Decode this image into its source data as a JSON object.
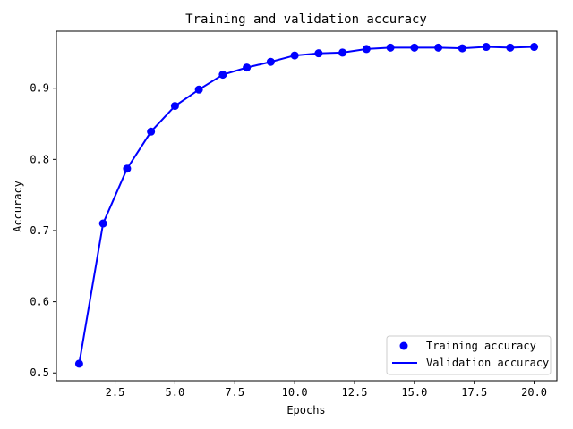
{
  "chart_data": {
    "type": "line",
    "title": "Training and validation accuracy",
    "xlabel": "Epochs",
    "ylabel": "Accuracy",
    "xlim": [
      0.05,
      20.95
    ],
    "ylim": [
      0.489,
      0.98
    ],
    "xticks": [
      {
        "value": 2.5,
        "label": "2.5"
      },
      {
        "value": 5.0,
        "label": "5.0"
      },
      {
        "value": 7.5,
        "label": "7.5"
      },
      {
        "value": 10.0,
        "label": "10.0"
      },
      {
        "value": 12.5,
        "label": "12.5"
      },
      {
        "value": 15.0,
        "label": "15.0"
      },
      {
        "value": 17.5,
        "label": "17.5"
      },
      {
        "value": 20.0,
        "label": "20.0"
      }
    ],
    "yticks": [
      {
        "value": 0.5,
        "label": "0.5"
      },
      {
        "value": 0.6,
        "label": "0.6"
      },
      {
        "value": 0.7,
        "label": "0.7"
      },
      {
        "value": 0.8,
        "label": "0.8"
      },
      {
        "value": 0.9,
        "label": "0.9"
      }
    ],
    "grid": false,
    "legend_position": "lower right",
    "x": [
      1,
      2,
      3,
      4,
      5,
      6,
      7,
      8,
      9,
      10,
      11,
      12,
      13,
      14,
      15,
      16,
      17,
      18,
      19,
      20
    ],
    "series": [
      {
        "name": "Training accuracy",
        "style": "markers",
        "color": "#0000ff",
        "values": [
          0.513,
          0.71,
          0.787,
          0.839,
          0.875,
          0.898,
          0.919,
          0.929,
          0.937,
          0.946,
          0.949,
          0.95,
          0.955,
          0.957,
          0.957,
          0.957,
          0.956,
          0.958,
          0.957,
          0.958
        ]
      },
      {
        "name": "Validation accuracy",
        "style": "line",
        "color": "#0000ff",
        "values": [
          0.513,
          0.71,
          0.787,
          0.839,
          0.875,
          0.898,
          0.919,
          0.929,
          0.937,
          0.946,
          0.949,
          0.95,
          0.955,
          0.957,
          0.957,
          0.957,
          0.956,
          0.958,
          0.957,
          0.958
        ]
      }
    ]
  }
}
